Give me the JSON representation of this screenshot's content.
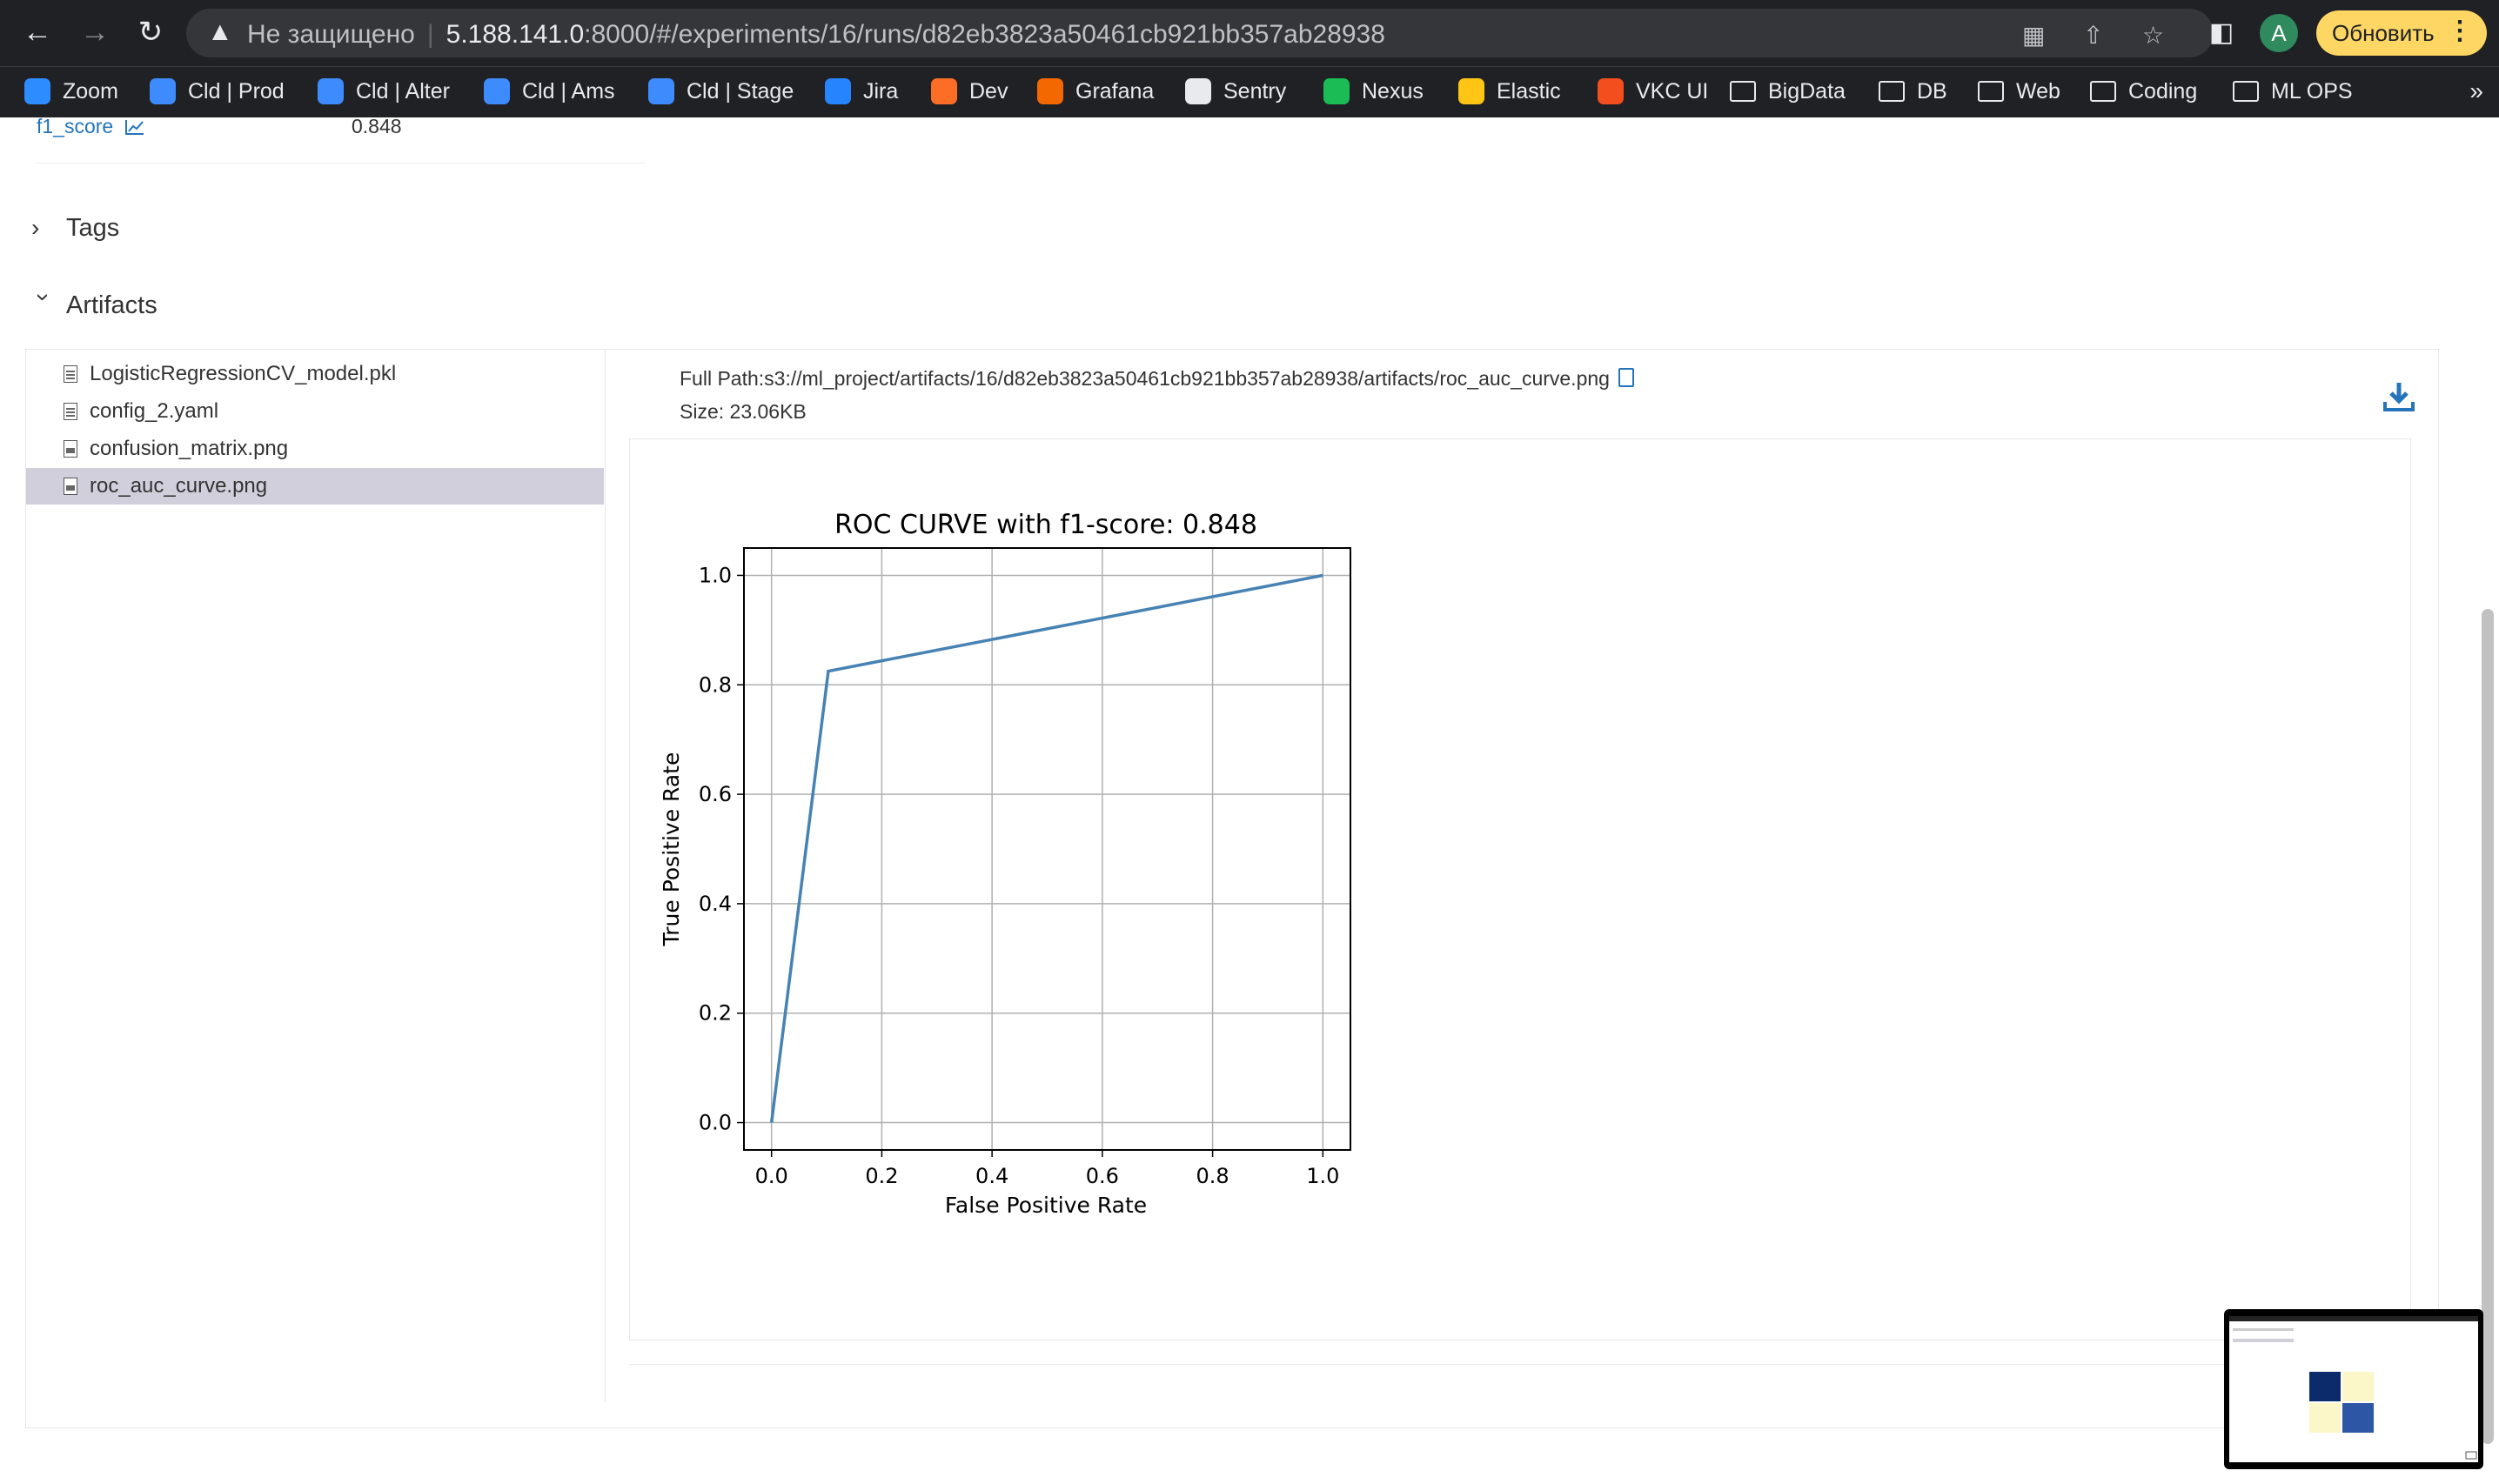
{
  "browser": {
    "security_warning": "Не защищено",
    "url_host": "5.188.141.0",
    "url_rest": ":8000/#/experiments/16/runs/d82eb3823a50461cb921bb357ab28938",
    "avatar_letter": "A",
    "update_label": "Обновить",
    "bookmarks": [
      {
        "label": "Zoom",
        "icon": "zoom-icon",
        "color": "#2d8cff"
      },
      {
        "label": "Cld | Prod",
        "icon": "cube-icon",
        "color": "#3d8bfd"
      },
      {
        "label": "Cld | Alter",
        "icon": "cube-icon",
        "color": "#3d8bfd"
      },
      {
        "label": "Cld | Ams",
        "icon": "cube-icon",
        "color": "#3d8bfd"
      },
      {
        "label": "Cld | Stage",
        "icon": "cube-icon",
        "color": "#3d8bfd"
      },
      {
        "label": "Jira",
        "icon": "jira-icon",
        "color": "#2684ff"
      },
      {
        "label": "Dev",
        "icon": "gitlab-icon",
        "color": "#fc6d26"
      },
      {
        "label": "Grafana",
        "icon": "grafana-icon",
        "color": "#f46800"
      },
      {
        "label": "Sentry",
        "icon": "sentry-icon",
        "color": "#e8eaed"
      },
      {
        "label": "Nexus",
        "icon": "nexus-icon",
        "color": "#1bbc55"
      },
      {
        "label": "Elastic",
        "icon": "elastic-icon",
        "color": "#fec514"
      },
      {
        "label": "VKC UI",
        "icon": "figma-icon",
        "color": "#f24e1e"
      },
      {
        "label": "BigData",
        "icon": "folder-icon"
      },
      {
        "label": "DB",
        "icon": "folder-icon"
      },
      {
        "label": "Web",
        "icon": "folder-icon"
      },
      {
        "label": "Coding",
        "icon": "folder-icon"
      },
      {
        "label": "ML OPS",
        "icon": "folder-icon"
      }
    ],
    "more": "»"
  },
  "metrics": {
    "name": "f1_score",
    "value": "0.848"
  },
  "sections": {
    "tags": "Tags",
    "artifacts": "Artifacts"
  },
  "artifacts": {
    "files": [
      {
        "name": "LogisticRegressionCV_model.pkl",
        "type": "file"
      },
      {
        "name": "config_2.yaml",
        "type": "config"
      },
      {
        "name": "confusion_matrix.png",
        "type": "image"
      },
      {
        "name": "roc_auc_curve.png",
        "type": "image",
        "selected": true
      }
    ],
    "full_path": "Full Path:s3://ml_project/artifacts/16/d82eb3823a50461cb921bb357ab28938/artifacts/roc_auc_curve.png",
    "size": "Size: 23.06KB"
  },
  "chart_data": {
    "type": "line",
    "title": "ROC CURVE with f1-score: 0.848",
    "xlabel": "False Positive Rate",
    "ylabel": "True Positive Rate",
    "xlim": [
      -0.05,
      1.05
    ],
    "ylim": [
      -0.05,
      1.05
    ],
    "xticks": [
      "0.0",
      "0.2",
      "0.4",
      "0.6",
      "0.8",
      "1.0"
    ],
    "yticks": [
      "0.0",
      "0.2",
      "0.4",
      "0.6",
      "0.8",
      "1.0"
    ],
    "grid": true,
    "series": [
      {
        "x": [
          0.0,
          0.103,
          1.0
        ],
        "y": [
          0.0,
          0.825,
          1.0
        ],
        "color": "#4682b4"
      }
    ]
  }
}
